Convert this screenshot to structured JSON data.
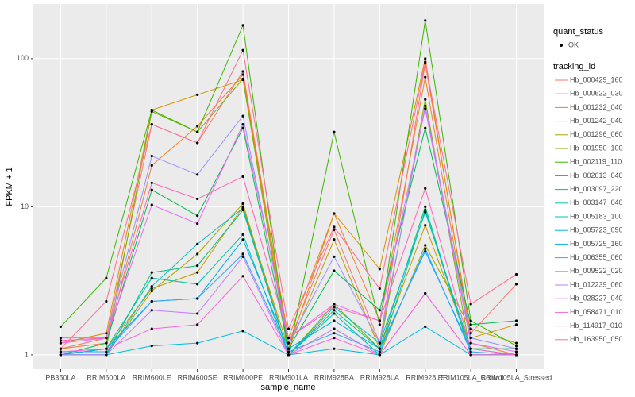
{
  "chart_data": {
    "type": "line",
    "log_scale": true,
    "grid": true,
    "x_label": "sample_name",
    "y_label": "FPKM + 1",
    "categories": [
      "PB350LA",
      "RRIM600LA",
      "RRIM600LE",
      "RRIM600SE",
      "RRIM600PE",
      "RRIM901LA",
      "RRIM928BA",
      "RRIM928LA",
      "RRIM928LE",
      "RRIM105LA_Control",
      "RRIM105LA_Stressed"
    ],
    "ylim": [
      0.8,
      234
    ],
    "yticks": [
      1,
      10,
      100
    ],
    "shape_legend": {
      "title": "quant_status",
      "labels": [
        "OK"
      ]
    },
    "legend_title": "tracking_id",
    "series": [
      {
        "name": "Hb_000429_160",
        "color": "#F8766D",
        "values": [
          1.1,
          1.3,
          36,
          27,
          82,
          1.2,
          7,
          1.2,
          93,
          1.4,
          3.0
        ]
      },
      {
        "name": "Hb_000622_030",
        "color": "#EA8331",
        "values": [
          1.1,
          1.2,
          19,
          35,
          78,
          1.1,
          9,
          1.7,
          75,
          1.2,
          1.0
        ]
      },
      {
        "name": "Hb_001232_040",
        "color": "#D89000",
        "values": [
          1.2,
          1.4,
          45,
          57,
          72,
          1.3,
          9,
          3.8,
          100,
          1.3,
          1.6
        ]
      },
      {
        "name": "Hb_001242_040",
        "color": "#C09B00",
        "values": [
          1.0,
          1.1,
          2.8,
          3.6,
          10,
          1.1,
          6,
          1.1,
          7.5,
          1.1,
          1.1
        ]
      },
      {
        "name": "Hb_001296_060",
        "color": "#A3A500",
        "values": [
          1.0,
          1.0,
          2.7,
          4.8,
          10.5,
          1.0,
          1.5,
          1.0,
          5.5,
          1.5,
          1.2
        ]
      },
      {
        "name": "Hb_001950_100",
        "color": "#7CAE00",
        "values": [
          1.0,
          1.1,
          44,
          32,
          73,
          1.0,
          2.2,
          1.1,
          53,
          1.0,
          1.0
        ]
      },
      {
        "name": "Hb_002119_110",
        "color": "#39B600",
        "values": [
          1.55,
          3.3,
          45,
          32,
          168,
          1.0,
          32,
          1.6,
          181,
          1.7,
          1.15
        ]
      },
      {
        "name": "Hb_002613_040",
        "color": "#00BB4E",
        "values": [
          1.0,
          1.2,
          13,
          8.7,
          34,
          1.1,
          3.7,
          2.0,
          34,
          1.6,
          1.7
        ]
      },
      {
        "name": "Hb_003097_220",
        "color": "#00BF7D",
        "values": [
          1.0,
          1.0,
          3.6,
          4.0,
          9.5,
          1.0,
          2.0,
          1.1,
          10,
          1.0,
          1.0
        ]
      },
      {
        "name": "Hb_003147_040",
        "color": "#00C1A3",
        "values": [
          1.0,
          1.1,
          3.3,
          3.0,
          6.5,
          1.0,
          1.9,
          1.0,
          9.5,
          1.0,
          1.0
        ]
      },
      {
        "name": "Hb_005183_100",
        "color": "#00BFC4",
        "values": [
          1.0,
          1.0,
          2.9,
          5.6,
          9.8,
          1.0,
          2.1,
          1.2,
          9.2,
          1.1,
          1.1
        ]
      },
      {
        "name": "Hb_005723_090",
        "color": "#00BAE0",
        "values": [
          1.0,
          1.0,
          1.15,
          1.2,
          1.45,
          1.0,
          1.1,
          1.0,
          1.55,
          1.0,
          1.0
        ]
      },
      {
        "name": "Hb_005725_160",
        "color": "#00B0F6",
        "values": [
          1.0,
          1.1,
          2.3,
          2.4,
          6.0,
          1.1,
          1.7,
          1.1,
          5.0,
          1.1,
          1.0
        ]
      },
      {
        "name": "Hb_006355_060",
        "color": "#35A2FF",
        "values": [
          1.05,
          1.05,
          2.3,
          2.4,
          4.8,
          1.05,
          1.4,
          1.05,
          5.2,
          1.05,
          1.0
        ]
      },
      {
        "name": "Hb_009522_020",
        "color": "#9590FF",
        "values": [
          1.3,
          1.3,
          22,
          16.5,
          41,
          1.2,
          4.6,
          1.2,
          48,
          1.3,
          1.1
        ]
      },
      {
        "name": "Hb_012239_060",
        "color": "#C77CFF",
        "values": [
          1.0,
          1.0,
          2.0,
          1.9,
          4.6,
          1.0,
          1.5,
          1.0,
          2.6,
          1.0,
          1.0
        ]
      },
      {
        "name": "Hb_028227_040",
        "color": "#E76BF3",
        "values": [
          1.2,
          1.3,
          10.3,
          7.7,
          36,
          1.3,
          2.2,
          1.7,
          46,
          1.2,
          1.05
        ]
      },
      {
        "name": "Hb_058471_010",
        "color": "#FA62DB",
        "values": [
          1.05,
          1.1,
          1.5,
          1.6,
          3.4,
          1.0,
          1.3,
          1.0,
          2.6,
          1.0,
          1.0
        ]
      },
      {
        "name": "Hb_114917_010",
        "color": "#FF62BC",
        "values": [
          1.25,
          1.3,
          14.5,
          11.3,
          16,
          1.3,
          2.1,
          1.7,
          13.3,
          1.1,
          1.0
        ]
      },
      {
        "name": "Hb_163950_050",
        "color": "#FF6C91",
        "values": [
          1.1,
          2.3,
          36,
          27,
          114,
          1.5,
          7.3,
          2.8,
          95,
          2.2,
          3.5
        ]
      }
    ]
  }
}
